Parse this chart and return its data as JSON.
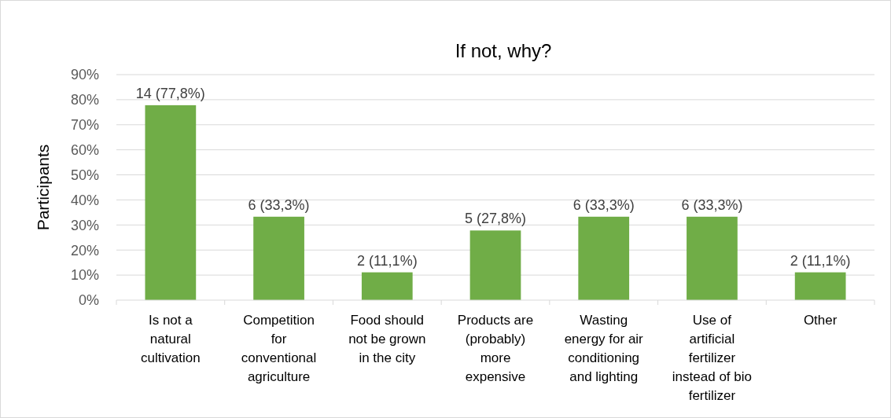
{
  "chart_data": {
    "type": "bar",
    "title": "If not, why?",
    "ylabel": "Participants",
    "categories": [
      "Is not a natural cultivation",
      "Competition for conventional agriculture",
      "Food should not be grown in the city",
      "Products are (probably) more expensive",
      "Wasting energy for air conditioning and lighting",
      "Use of artificial fertilizer instead of bio fertilizer",
      "Other"
    ],
    "values": [
      77.8,
      33.3,
      11.1,
      27.8,
      33.3,
      33.3,
      11.1
    ],
    "value_labels": [
      "14 (77,8%)",
      "6 (33,3%)",
      "2 (11,1%)",
      "5 (27,8%)",
      "6 (33,3%)",
      "6 (33,3%)",
      "2 (11,1%)"
    ],
    "color": "#70ad47",
    "ylim": [
      0,
      90
    ],
    "yticks": [
      {
        "value": 0,
        "label": "0%"
      },
      {
        "value": 10,
        "label": "10%"
      },
      {
        "value": 20,
        "label": "20%"
      },
      {
        "value": 30,
        "label": "30%"
      },
      {
        "value": 40,
        "label": "40%"
      },
      {
        "value": 50,
        "label": "50%"
      },
      {
        "value": 60,
        "label": "60%"
      },
      {
        "value": 70,
        "label": "70%"
      },
      {
        "value": 80,
        "label": "80%"
      },
      {
        "value": 90,
        "label": "90%"
      }
    ],
    "grid": "y"
  }
}
